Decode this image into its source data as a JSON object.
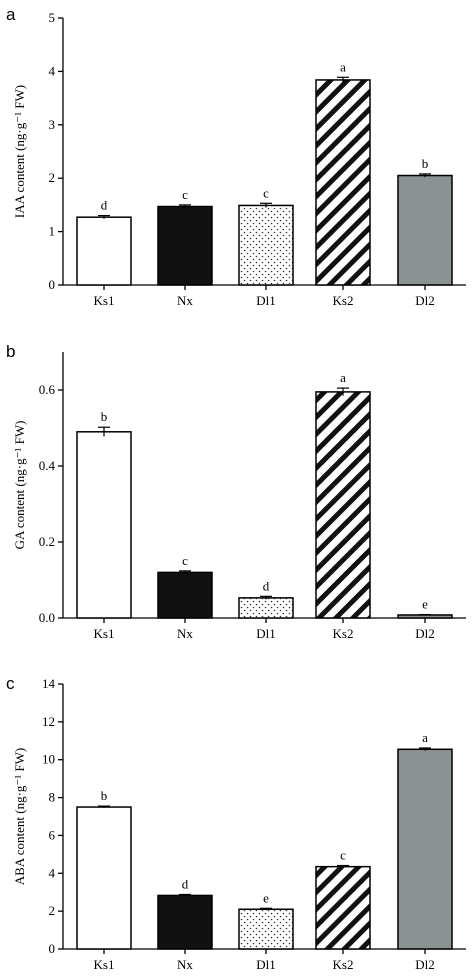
{
  "patterns": {
    "Ks1": {
      "fill": "#ffffff",
      "pattern": "none"
    },
    "Nx": {
      "fill": "#111111",
      "pattern": "none"
    },
    "Dl1": {
      "fill": "#ffffff",
      "pattern": "dots"
    },
    "Ks2": {
      "fill": "#ffffff",
      "pattern": "diagonal-stripes"
    },
    "Dl2": {
      "fill": "#8c9292",
      "pattern": "none"
    }
  },
  "chart_data": [
    {
      "panel": "a",
      "type": "bar",
      "ylabel": "IAA content (ng·g⁻¹ FW)",
      "categories": [
        "Ks1",
        "Nx",
        "Dl1",
        "Ks2",
        "Dl2"
      ],
      "values": [
        1.27,
        1.47,
        1.49,
        3.84,
        2.05
      ],
      "errors": [
        0.03,
        0.03,
        0.04,
        0.05,
        0.03
      ],
      "significance": [
        "d",
        "c",
        "c",
        "a",
        "b"
      ],
      "ylim": [
        0,
        5
      ],
      "yticks": [
        "0",
        "1",
        "2",
        "3",
        "4",
        "5"
      ]
    },
    {
      "panel": "b",
      "type": "bar",
      "ylabel": "GA content (ng·g⁻¹ FW)",
      "categories": [
        "Ks1",
        "Nx",
        "Dl1",
        "Ks2",
        "Dl2"
      ],
      "values": [
        0.49,
        0.12,
        0.053,
        0.595,
        0.008
      ],
      "errors": [
        0.012,
        0.004,
        0.004,
        0.01,
        0.001
      ],
      "significance": [
        "b",
        "c",
        "d",
        "a",
        "e"
      ],
      "ylim": [
        0,
        0.7
      ],
      "yticks": [
        "0.0",
        "0.2",
        "0.4",
        "0.6"
      ],
      "ytick_values": [
        0,
        0.2,
        0.4,
        0.6
      ]
    },
    {
      "panel": "c",
      "type": "bar",
      "ylabel": "ABA content (ng·g⁻¹ FW)",
      "categories": [
        "Ks1",
        "Nx",
        "Dl1",
        "Ks2",
        "Dl2"
      ],
      "values": [
        7.5,
        2.83,
        2.1,
        4.35,
        10.55
      ],
      "errors": [
        0.05,
        0.05,
        0.05,
        0.06,
        0.07
      ],
      "significance": [
        "b",
        "d",
        "e",
        "c",
        "a"
      ],
      "ylim": [
        0,
        14
      ],
      "yticks": [
        "0",
        "2",
        "4",
        "6",
        "8",
        "10",
        "12",
        "14"
      ]
    }
  ]
}
